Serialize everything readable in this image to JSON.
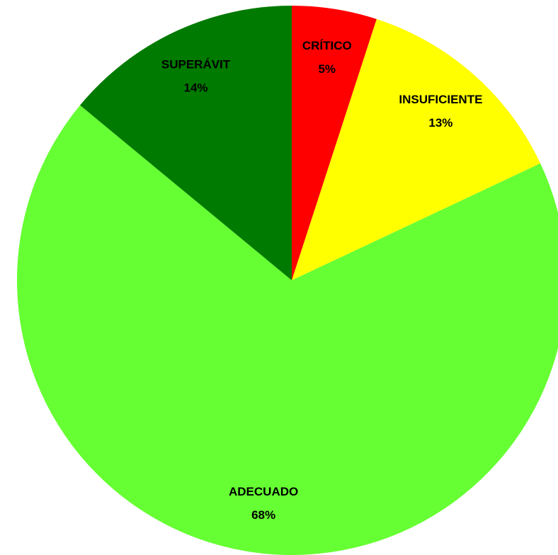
{
  "chart_data": {
    "type": "pie",
    "categories": [
      "CRÍTICO",
      "INSUFICIENTE",
      "ADECUADO",
      "SUPERÁVIT"
    ],
    "values": [
      5,
      13,
      68,
      14
    ],
    "value_labels": [
      "5%",
      "13%",
      "68%",
      "14%"
    ],
    "colors": [
      "#ff0000",
      "#ffff00",
      "#66ff33",
      "#007a00"
    ]
  }
}
